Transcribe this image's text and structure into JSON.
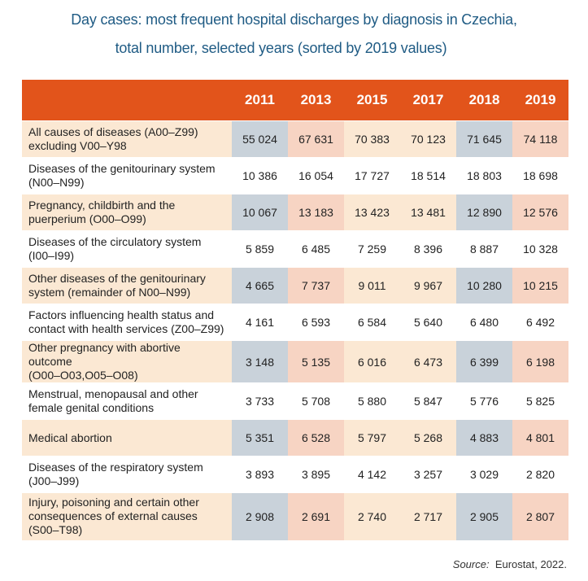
{
  "title_line1": "Day cases: most frequent hospital discharges by diagnosis in Czechia,",
  "title_line2": "total number, selected years (sorted by 2019 values)",
  "source_label": "Source:",
  "source_text": "Eurostat, 2022.",
  "colors": {
    "header": "#e2541b",
    "title": "#1f5b84",
    "row_shade": "#fbe8d3"
  },
  "chart_data": {
    "type": "table",
    "columns": [
      "2011",
      "2013",
      "2015",
      "2017",
      "2018",
      "2019"
    ],
    "rows": [
      {
        "label_lines": [
          "All causes of diseases (A00–Z99)",
          "excluding V00–Y98"
        ],
        "values": [
          "55 024",
          "67 631",
          "70 383",
          "70 123",
          "71 645",
          "74 118"
        ]
      },
      {
        "label_lines": [
          "Diseases of the genitourinary system",
          "(N00–N99)"
        ],
        "values": [
          "10 386",
          "16 054",
          "17 727",
          "18 514",
          "18 803",
          "18 698"
        ]
      },
      {
        "label_lines": [
          "Pregnancy, childbirth and the",
          "puerperium (O00–O99)"
        ],
        "values": [
          "10 067",
          "13 183",
          "13 423",
          "13 481",
          "12 890",
          "12 576"
        ]
      },
      {
        "label_lines": [
          "Diseases of the circulatory system",
          "(I00–I99)"
        ],
        "values": [
          "5 859",
          "6 485",
          "7 259",
          "8 396",
          "8 887",
          "10 328"
        ]
      },
      {
        "label_lines": [
          "Other diseases of the genitourinary",
          "system (remainder of N00–N99)"
        ],
        "values": [
          "4 665",
          "7 737",
          "9 011",
          "9 967",
          "10 280",
          "10 215"
        ]
      },
      {
        "label_lines": [
          "Factors influencing health status and",
          "contact with health services (Z00–Z99)"
        ],
        "values": [
          "4 161",
          "6 593",
          "6 584",
          "5 640",
          "6 480",
          "6 492"
        ]
      },
      {
        "label_lines": [
          "Other pregnancy with abortive outcome",
          "(O00–O03,O05–O08)"
        ],
        "values": [
          "3 148",
          "5 135",
          "6 016",
          "6 473",
          "6 399",
          "6 198"
        ]
      },
      {
        "label_lines": [
          "Menstrual, menopausal and other",
          "female genital conditions"
        ],
        "values": [
          "3 733",
          "5 708",
          "5 880",
          "5 847",
          "5 776",
          "5 825"
        ]
      },
      {
        "label_lines": [
          "Medical abortion"
        ],
        "values": [
          "5 351",
          "6 528",
          "5 797",
          "5 268",
          "4 883",
          "4 801"
        ]
      },
      {
        "label_lines": [
          "Diseases of the respiratory system",
          "(J00–J99)"
        ],
        "values": [
          "3 893",
          "3 895",
          "4 142",
          "3 257",
          "3 029",
          "2 820"
        ]
      },
      {
        "label_lines": [
          "Injury, poisoning and certain other",
          "consequences of external causes",
          "(S00–T98)"
        ],
        "values": [
          "2 908",
          "2 691",
          "2 740",
          "2 717",
          "2 905",
          "2 807"
        ]
      }
    ]
  }
}
